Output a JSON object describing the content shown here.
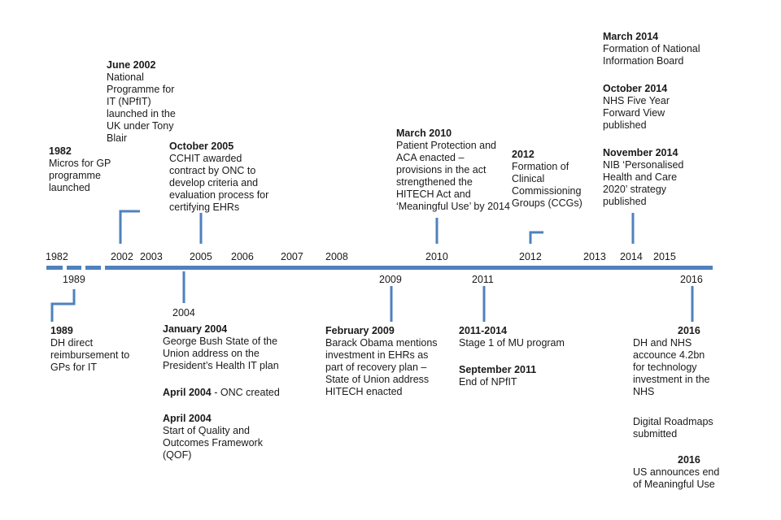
{
  "accent": "#4f81bd",
  "years_top": [
    "1982",
    "2002",
    "2003",
    "2005",
    "2006",
    "2007",
    "2008",
    "2010",
    "2012",
    "2013",
    "2014",
    "2015"
  ],
  "years_bottom": [
    "1989",
    "2004",
    "2009",
    "2011",
    "2016"
  ],
  "events": [
    {
      "title": "1982",
      "text": "Micros for GP programme launched"
    },
    {
      "title": "June 2002",
      "text": "National Programme for IT (NPfIT) launched in the UK under Tony Blair"
    },
    {
      "title": "October 2005",
      "text": "CCHIT awarded contract by ONC to develop criteria and evaluation process for certifying EHRs"
    },
    {
      "title": "March 2010",
      "text": "Patient Protection and ACA enacted – provisions in the act strengthened the HITECH Act and ‘Meaningful Use’ by 2014"
    },
    {
      "title": "2012",
      "text": "Formation of Clinical Commissioning Groups (CCGs)"
    },
    {
      "title": "March 2014",
      "text": "Formation of National Information Board"
    },
    {
      "title": "October 2014",
      "text": "NHS Five Year Forward View published"
    },
    {
      "title": "November 2014",
      "text": "NIB ‘Personalised Health and Care 2020’ strategy published"
    },
    {
      "title": "1989",
      "text": "DH direct reimbursement to GPs for IT"
    },
    {
      "title": "January 2004",
      "text": "George Bush State of the Union address on the President’s Health IT plan"
    },
    {
      "title": "April 2004",
      "text": " - ONC created"
    },
    {
      "title": "April 2004",
      "text": "Start of Quality and Outcomes Framework (QOF)"
    },
    {
      "title": "February 2009",
      "text": "Barack Obama mentions investment in EHRs as part of recovery plan – State of Union address HITECH enacted"
    },
    {
      "title": "2011-2014",
      "text": "Stage 1 of MU program"
    },
    {
      "title": "September 2011",
      "text": "End of NPfIT"
    },
    {
      "title": "2016",
      "text": "DH and NHS accounce 4.2bn for technology investment in the NHS"
    },
    {
      "title": "",
      "text": "Digital Roadmaps submitted"
    },
    {
      "title": "2016",
      "text": "US announces end of Meaningful Use"
    }
  ]
}
